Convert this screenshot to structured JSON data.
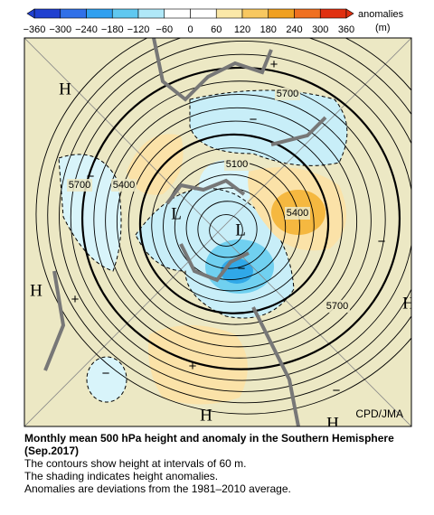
{
  "colorbar": {
    "ticks": [
      "−360",
      "−300",
      "−240",
      "−180",
      "−120",
      "−60",
      "0",
      "60",
      "120",
      "180",
      "240",
      "300",
      "360"
    ],
    "title": "anomalies",
    "unit": "(m)"
  },
  "map": {
    "contour_labels": [
      "5700",
      "5700",
      "5400",
      "5100",
      "5400",
      "5700"
    ],
    "pressure_labels": [
      "H",
      "H",
      "H",
      "H",
      "H",
      "L",
      "L"
    ],
    "signs": [
      "+",
      "+",
      "+",
      "−",
      "−",
      "−",
      "−",
      "−",
      "−"
    ],
    "credit": "CPD/JMA"
  },
  "caption": {
    "title": "Monthly mean 500 hPa height and anomaly in the Southern Hemisphere (Sep.2017)",
    "lines": [
      "The contours show height at intervals of 60 m.",
      "The shading indicates height anomalies.",
      "Anomalies are deviations from the 1981–2010 average."
    ]
  }
}
